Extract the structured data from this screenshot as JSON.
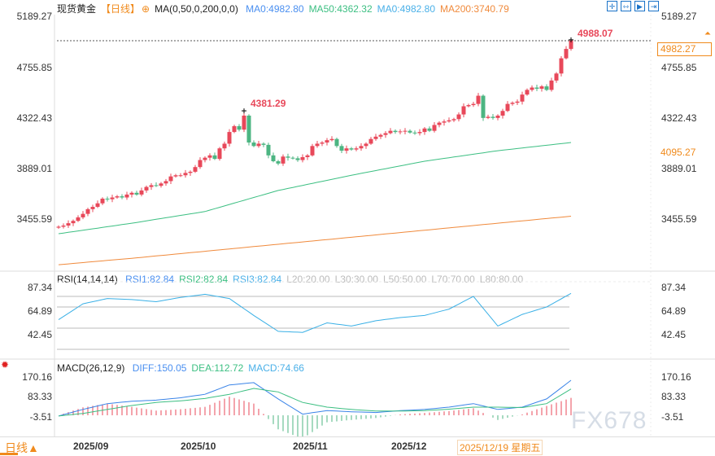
{
  "header": {
    "title": "现货黄金",
    "period": "【日线】",
    "indicator": "MA(0,50,0,200,0,0)",
    "ma": [
      {
        "label": "MA0:4982.80",
        "color": "#4a8ff0"
      },
      {
        "label": "MA50:4362.32",
        "color": "#3cbf82"
      },
      {
        "label": "MA0:4982.80",
        "color": "#4ab0e8"
      },
      {
        "label": "MA200:3740.79",
        "color": "#f08a3c"
      }
    ]
  },
  "price_axis": {
    "left": [
      "5189.27",
      "4755.85",
      "4322.43",
      "3889.01",
      "3455.59"
    ],
    "right": [
      "5189.27",
      "4755.85",
      "4322.43",
      "3889.01",
      "3455.59"
    ],
    "current_price": "4982.27",
    "marker_price": "4095.27",
    "high_label": "4988.07",
    "peak_label": "4381.29"
  },
  "colors": {
    "up": "#e8485a",
    "down": "#4cb582",
    "ma50": "#3cbf82",
    "ma200": "#f08a3c",
    "rsi": "#3ab0e6",
    "diff": "#3a84e8",
    "dea": "#3cbf82",
    "accent": "#f08a1c"
  },
  "candles_closes": [
    3390,
    3400,
    3420,
    3440,
    3470,
    3500,
    3540,
    3560,
    3590,
    3630,
    3625,
    3640,
    3650,
    3640,
    3665,
    3680,
    3665,
    3700,
    3730,
    3745,
    3740,
    3760,
    3780,
    3820,
    3830,
    3830,
    3850,
    3860,
    3900,
    3960,
    3980,
    4000,
    3970,
    4060,
    4100,
    4200,
    4250,
    4220,
    4340,
    4110,
    4080,
    4100,
    4090,
    4000,
    3950,
    3930,
    3990,
    3980,
    3975,
    3960,
    3985,
    4000,
    4080,
    4100,
    4110,
    4130,
    4140,
    4080,
    4040,
    4060,
    4050,
    4060,
    4080,
    4100,
    4140,
    4160,
    4175,
    4190,
    4210,
    4200,
    4205,
    4210,
    4195,
    4190,
    4200,
    4230,
    4210,
    4260,
    4280,
    4290,
    4300,
    4310,
    4350,
    4420,
    4430,
    4440,
    4510,
    4320,
    4330,
    4320,
    4340,
    4380,
    4440,
    4450,
    4460,
    4520,
    4560,
    4580,
    4570,
    4590,
    4560,
    4640,
    4700,
    4830,
    4910,
    4982
  ],
  "ma50_every15": [
    3330,
    3420,
    3520,
    3700,
    3830,
    3950,
    4040,
    4110,
    4160,
    4250
  ],
  "ma200_every15": [
    3065,
    3120,
    3180,
    3240,
    3300,
    3360,
    3420,
    3480,
    3560,
    3650,
    3740
  ],
  "rsi": {
    "label": "RSI(14,14,14)",
    "values_text": [
      {
        "label": "RSI1:82.84",
        "color": "#4a8ff0"
      },
      {
        "label": "RSI2:82.84",
        "color": "#3cbf82"
      },
      {
        "label": "RSI3:82.84",
        "color": "#4ab0e8"
      },
      {
        "label": "L20:20.00",
        "color": "#bbb"
      },
      {
        "label": "L30:30.00",
        "color": "#bbb"
      },
      {
        "label": "L50:50.00",
        "color": "#bbb"
      },
      {
        "label": "L70:70.00",
        "color": "#bbb"
      },
      {
        "label": "L80:80.00",
        "color": "#bbb"
      }
    ],
    "axis": [
      "87.34",
      "64.89",
      "42.45"
    ],
    "levels": [
      80,
      70,
      50,
      30
    ],
    "every5": [
      58,
      73,
      78,
      77,
      75,
      79,
      82,
      78,
      62,
      47,
      46,
      55,
      52,
      57,
      60,
      62,
      68,
      80,
      52,
      63,
      70,
      82.84
    ]
  },
  "macd": {
    "label": "MACD(26,12,9)",
    "values_text": [
      {
        "label": "DIFF:150.05",
        "color": "#4a8ff0"
      },
      {
        "label": "DEA:112.72",
        "color": "#3cbf82"
      },
      {
        "label": "MACD:74.66",
        "color": "#4ab0e8"
      }
    ],
    "axis": [
      "170.16",
      "83.33",
      "-3.51"
    ],
    "diff_every5": [
      -3,
      25,
      50,
      60,
      65,
      75,
      90,
      130,
      140,
      70,
      5,
      20,
      15,
      12,
      20,
      25,
      35,
      50,
      25,
      35,
      70,
      150.05
    ],
    "dea_every5": [
      -3,
      8,
      25,
      42,
      55,
      62,
      72,
      90,
      115,
      100,
      55,
      35,
      25,
      18,
      18,
      20,
      26,
      35,
      35,
      33,
      50,
      112.72
    ]
  },
  "xaxis": {
    "period_button": "日线▲",
    "months": [
      "2025/09",
      "2025/10",
      "2025/11",
      "2025/12"
    ],
    "cursor_date": "2025/12/19 星期五"
  },
  "watermark": "FX678"
}
